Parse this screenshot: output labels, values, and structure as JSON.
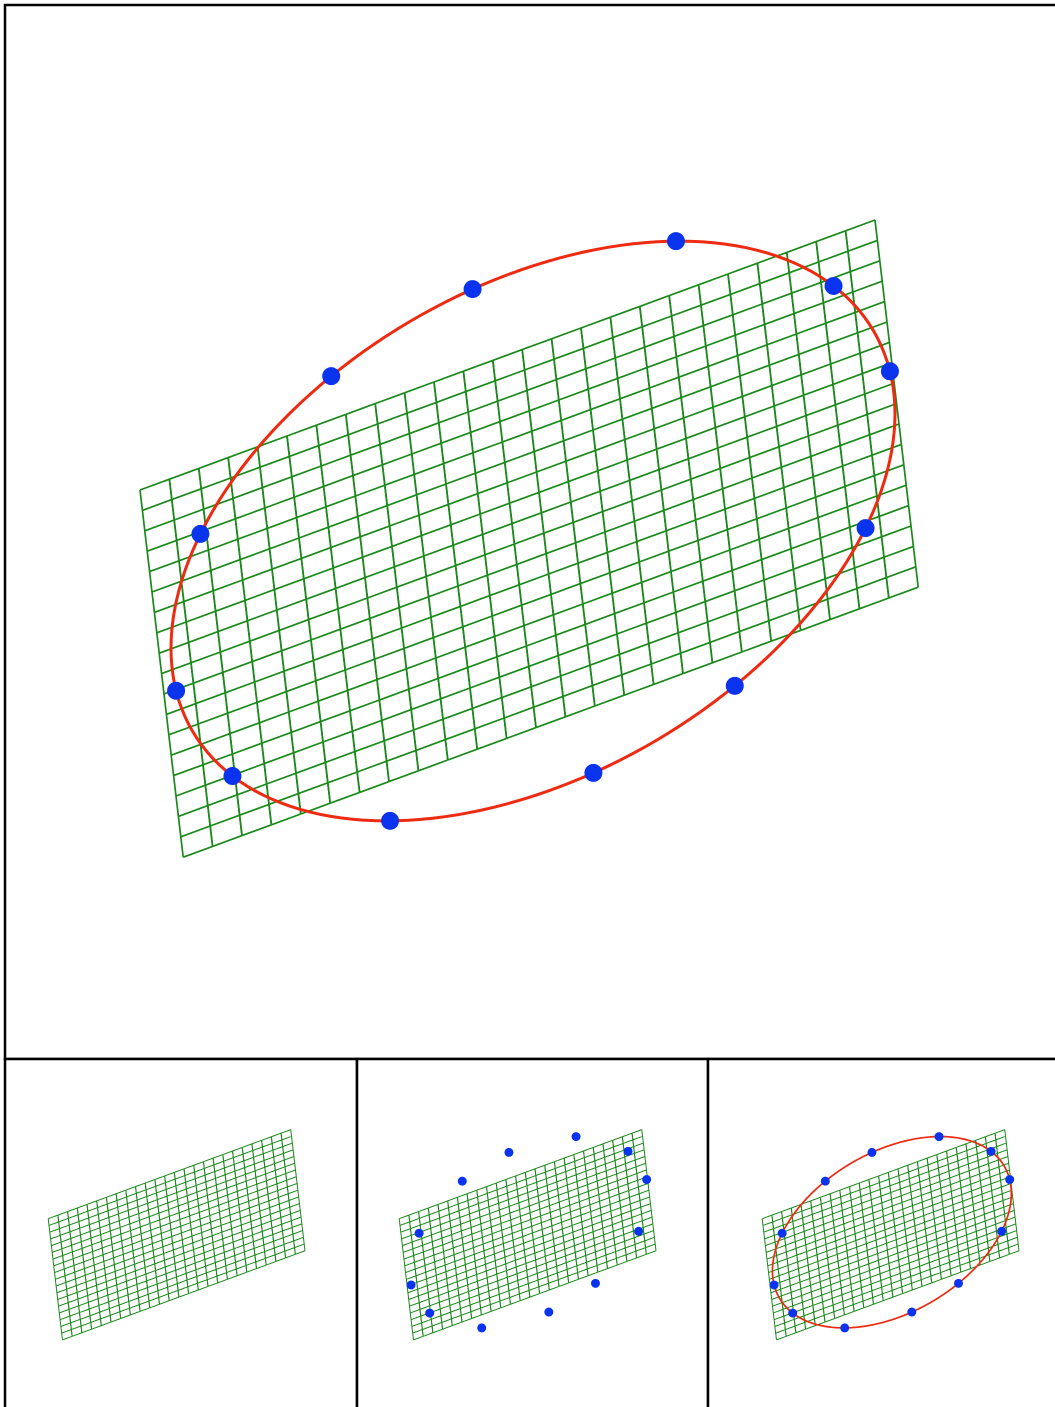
{
  "colors": {
    "background": "#ffffff",
    "border": "#000000",
    "grid": "#1a8a1a",
    "curve": "#ee2a10",
    "points": "#0a33ee"
  },
  "panels": [
    {
      "name": "main-panel",
      "show_grid": true,
      "show_points": true,
      "show_curve": true
    },
    {
      "name": "step-grid-panel",
      "show_grid": true,
      "show_points": false,
      "show_curve": false
    },
    {
      "name": "step-points-panel",
      "show_grid": true,
      "show_points": true,
      "show_curve": false
    },
    {
      "name": "step-fit-panel",
      "show_grid": true,
      "show_points": true,
      "show_curve": true
    }
  ],
  "grid": {
    "columns": 25,
    "rows": 18,
    "type": "sheared-lattice"
  },
  "point_count": 12,
  "curve_type": "ellipse"
}
